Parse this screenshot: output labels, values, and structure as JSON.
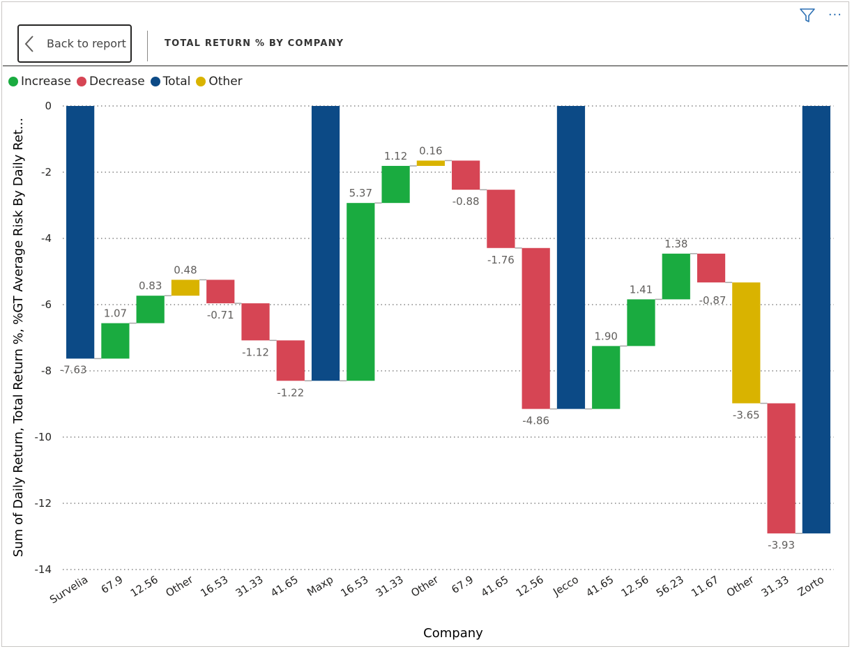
{
  "header": {
    "back_label": "Back to report",
    "title": "TOTAL RETURN % BY COMPANY",
    "more_icon_glyph": "···"
  },
  "icons": {
    "filter": "filter-icon",
    "more": "more-options-icon",
    "back": "chevron-left-icon"
  },
  "legend": [
    {
      "label": "Increase",
      "color": "#1aab40"
    },
    {
      "label": "Decrease",
      "color": "#d64554"
    },
    {
      "label": "Total",
      "color": "#0c4a86"
    },
    {
      "label": "Other",
      "color": "#d9b300"
    }
  ],
  "chart_data": {
    "type": "waterfall",
    "xlabel": "Company",
    "ylabel": "Sum of Daily Return, Total Return %, %GT Average Risk By Daily Ret...",
    "ylim": [
      -14,
      0
    ],
    "yticks": [
      0,
      -2,
      -4,
      -6,
      -8,
      -10,
      -12,
      -14
    ],
    "grid": true,
    "legend_position": "top-left",
    "colors": {
      "Increase": "#1aab40",
      "Decrease": "#d64554",
      "Total": "#0c4a86",
      "Other": "#d9b300"
    },
    "bars": [
      {
        "category": "Survelia",
        "kind": "Total",
        "start": 0,
        "end": -7.63,
        "label": "-7.63"
      },
      {
        "category": "67.9",
        "kind": "Increase",
        "start": -7.63,
        "end": -6.56,
        "label": "1.07"
      },
      {
        "category": "12.56",
        "kind": "Increase",
        "start": -6.56,
        "end": -5.73,
        "label": "0.83"
      },
      {
        "category": "Other",
        "kind": "Other",
        "start": -5.73,
        "end": -5.25,
        "label": "0.48"
      },
      {
        "category": "16.53",
        "kind": "Decrease",
        "start": -5.25,
        "end": -5.96,
        "label": "-0.71"
      },
      {
        "category": "31.33",
        "kind": "Decrease",
        "start": -5.96,
        "end": -7.08,
        "label": "-1.12"
      },
      {
        "category": "41.65",
        "kind": "Decrease",
        "start": -7.08,
        "end": -8.3,
        "label": "-1.22"
      },
      {
        "category": "Maxp",
        "kind": "Total",
        "start": 0,
        "end": -8.3,
        "label": ""
      },
      {
        "category": "16.53",
        "kind": "Increase",
        "start": -8.3,
        "end": -2.93,
        "label": "5.37"
      },
      {
        "category": "31.33",
        "kind": "Increase",
        "start": -2.93,
        "end": -1.81,
        "label": "1.12"
      },
      {
        "category": "Other",
        "kind": "Other",
        "start": -1.81,
        "end": -1.65,
        "label": "0.16"
      },
      {
        "category": "67.9",
        "kind": "Decrease",
        "start": -1.65,
        "end": -2.53,
        "label": "-0.88"
      },
      {
        "category": "41.65",
        "kind": "Decrease",
        "start": -2.53,
        "end": -4.29,
        "label": "-1.76"
      },
      {
        "category": "12.56",
        "kind": "Decrease",
        "start": -4.29,
        "end": -9.15,
        "label": "-4.86"
      },
      {
        "category": "Jecco",
        "kind": "Total",
        "start": 0,
        "end": -9.15,
        "label": ""
      },
      {
        "category": "41.65",
        "kind": "Increase",
        "start": -9.15,
        "end": -7.25,
        "label": "1.90"
      },
      {
        "category": "12.56",
        "kind": "Increase",
        "start": -7.25,
        "end": -5.84,
        "label": "1.41"
      },
      {
        "category": "56.23",
        "kind": "Increase",
        "start": -5.84,
        "end": -4.46,
        "label": "1.38"
      },
      {
        "category": "11.67",
        "kind": "Decrease",
        "start": -4.46,
        "end": -5.33,
        "label": "-0.87"
      },
      {
        "category": "Other",
        "kind": "Other",
        "start": -5.33,
        "end": -8.98,
        "label": "-3.65"
      },
      {
        "category": "31.33",
        "kind": "Decrease",
        "start": -8.98,
        "end": -12.91,
        "label": "-3.93"
      },
      {
        "category": "Zorto",
        "kind": "Total",
        "start": 0,
        "end": -12.91,
        "label": ""
      }
    ]
  }
}
